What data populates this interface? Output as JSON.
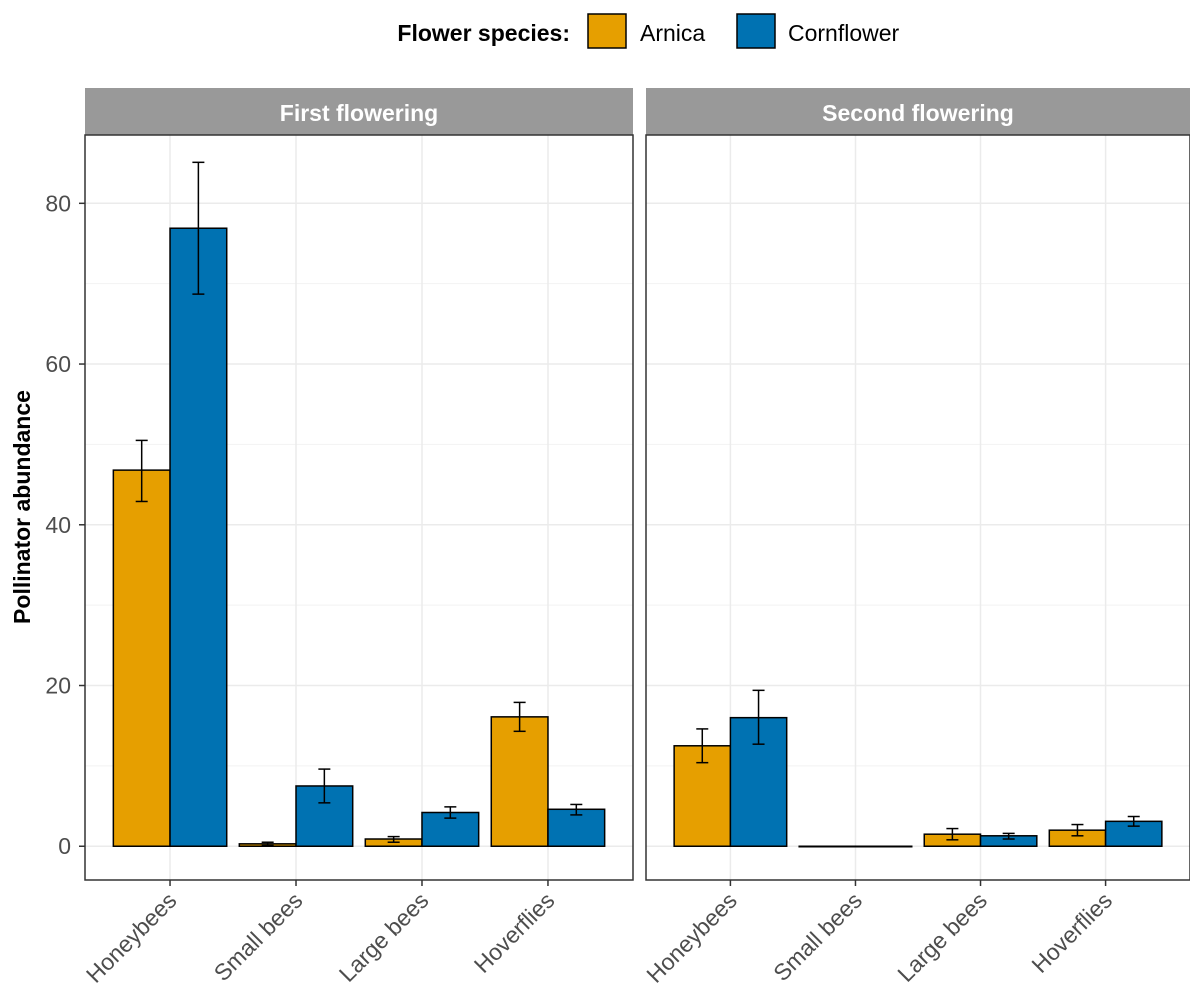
{
  "legend": {
    "title": "Flower species:",
    "items": [
      {
        "label": "Arnica",
        "color": "#E69F00"
      },
      {
        "label": "Cornflower",
        "color": "#0072B2"
      }
    ],
    "position": "top"
  },
  "chart_data": {
    "type": "bar",
    "ylabel": "Pollinator abundance",
    "xlabel": "",
    "ylim": [
      -4.2,
      88.5
    ],
    "yticks": [
      0,
      20,
      40,
      60,
      80
    ],
    "grid": true,
    "categories": [
      "Honeybees",
      "Small bees",
      "Large bees",
      "Hoverflies"
    ],
    "panels": [
      {
        "title": "First flowering",
        "series": [
          {
            "name": "Arnica",
            "values": [
              46.8,
              0.3,
              0.9,
              16.1
            ],
            "error": [
              [
                42.9,
                50.5
              ],
              [
                0.1,
                0.5
              ],
              [
                0.5,
                1.2
              ],
              [
                14.3,
                17.9
              ]
            ]
          },
          {
            "name": "Cornflower",
            "values": [
              76.9,
              7.5,
              4.2,
              4.6
            ],
            "error": [
              [
                68.7,
                85.1
              ],
              [
                5.4,
                9.6
              ],
              [
                3.5,
                4.9
              ],
              [
                3.9,
                5.2
              ]
            ]
          }
        ]
      },
      {
        "title": "Second flowering",
        "series": [
          {
            "name": "Arnica",
            "values": [
              12.5,
              0.0,
              1.5,
              2.0
            ],
            "error": [
              [
                10.4,
                14.6
              ],
              [
                0.0,
                0.0
              ],
              [
                0.8,
                2.2
              ],
              [
                1.3,
                2.7
              ]
            ]
          },
          {
            "name": "Cornflower",
            "values": [
              16.0,
              0.0,
              1.3,
              3.1
            ],
            "error": [
              [
                12.7,
                19.4
              ],
              [
                0.0,
                0.0
              ],
              [
                0.9,
                1.6
              ],
              [
                2.5,
                3.7
              ]
            ]
          }
        ]
      }
    ]
  }
}
